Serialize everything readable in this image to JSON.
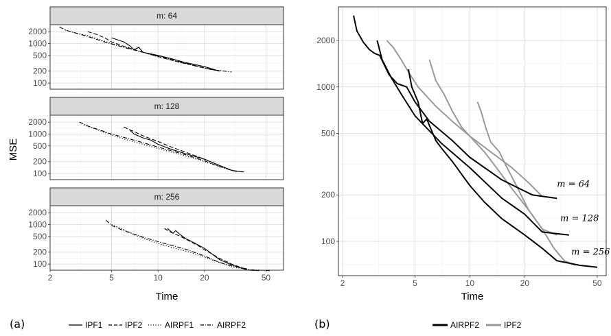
{
  "figure": {
    "panel_a_label": "(a)",
    "panel_b_label": "(b)",
    "legend_a": [
      "IPF1",
      "IPF2",
      "AIRPF1",
      "AIRPF2"
    ],
    "legend_b": [
      "AIRPF2",
      "IPF2"
    ]
  },
  "chart_data": [
    {
      "type": "line",
      "panel": "(a)",
      "facet_label_prefix": "m: ",
      "xlabel": "Time",
      "ylabel": "MSE",
      "x_scale": "log",
      "y_scale": "log",
      "xlim": [
        2,
        65
      ],
      "ylim": [
        70,
        3000
      ],
      "x_ticks": [
        2,
        5,
        10,
        20,
        50
      ],
      "y_ticks": [
        100,
        200,
        500,
        1000,
        2000
      ],
      "grid": true,
      "legend_position": "bottom",
      "line_styles": {
        "IPF1": "solid",
        "IPF2": "dashed",
        "AIRPF1": "dotted",
        "AIRPF2": "dotdash"
      },
      "facets": [
        {
          "m": 64,
          "series": [
            {
              "name": "IPF1",
              "points": [
                [
                  5.0,
                  1400
                ],
                [
                  6.0,
                  1100
                ],
                [
                  6.5,
                  900
                ],
                [
                  7.0,
                  700
                ],
                [
                  7.5,
                  800
                ],
                [
                  8.0,
                  600
                ],
                [
                  10,
                  500
                ],
                [
                  12,
                  420
                ],
                [
                  15,
                  330
                ],
                [
                  20,
                  260
                ],
                [
                  25,
                  200
                ]
              ]
            },
            {
              "name": "IPF2",
              "points": [
                [
                  3.5,
                  2000
                ],
                [
                  4.0,
                  1700
                ],
                [
                  4.5,
                  1400
                ],
                [
                  5.0,
                  1100
                ],
                [
                  6.0,
                  850
                ],
                [
                  8.0,
                  600
                ],
                [
                  10,
                  470
                ],
                [
                  14,
                  330
                ],
                [
                  20,
                  240
                ],
                [
                  25,
                  200
                ]
              ]
            },
            {
              "name": "AIRPF1",
              "points": [
                [
                  2.5,
                  2200
                ],
                [
                  3.0,
                  1800
                ],
                [
                  3.5,
                  1600
                ],
                [
                  4.0,
                  1350
                ],
                [
                  5.0,
                  1000
                ],
                [
                  7.0,
                  700
                ],
                [
                  10,
                  460
                ],
                [
                  15,
                  310
                ],
                [
                  20,
                  240
                ],
                [
                  26,
                  200
                ]
              ]
            },
            {
              "name": "AIRPF2",
              "points": [
                [
                  2.3,
                  2600
                ],
                [
                  2.6,
                  2100
                ],
                [
                  3.0,
                  1800
                ],
                [
                  3.5,
                  1500
                ],
                [
                  4.5,
                  1100
                ],
                [
                  6.0,
                  800
                ],
                [
                  8.0,
                  600
                ],
                [
                  10,
                  480
                ],
                [
                  15,
                  320
                ],
                [
                  22,
                  220
                ],
                [
                  30,
                  190
                ]
              ]
            }
          ]
        },
        {
          "m": 128,
          "series": [
            {
              "name": "IPF1",
              "points": [
                [
                  6.5,
                  1300
                ],
                [
                  7.0,
                  1000
                ],
                [
                  8.0,
                  800
                ],
                [
                  9.0,
                  700
                ],
                [
                  10,
                  550
                ],
                [
                  12,
                  420
                ],
                [
                  15,
                  320
                ],
                [
                  20,
                  230
                ],
                [
                  25,
                  160
                ],
                [
                  30,
                  120
                ],
                [
                  35,
                  110
                ]
              ]
            },
            {
              "name": "IPF2",
              "points": [
                [
                  6.0,
                  1500
                ],
                [
                  7.0,
                  1150
                ],
                [
                  8.0,
                  900
                ],
                [
                  10,
                  650
                ],
                [
                  12,
                  480
                ],
                [
                  15,
                  350
                ],
                [
                  20,
                  230
                ],
                [
                  25,
                  160
                ],
                [
                  30,
                  120
                ],
                [
                  33,
                  110
                ]
              ]
            },
            {
              "name": "AIRPF1",
              "points": [
                [
                  3.3,
                  1700
                ],
                [
                  4.0,
                  1300
                ],
                [
                  5.0,
                  950
                ],
                [
                  6.0,
                  750
                ],
                [
                  8.0,
                  550
                ],
                [
                  10,
                  430
                ],
                [
                  15,
                  280
                ],
                [
                  20,
                  200
                ],
                [
                  25,
                  150
                ],
                [
                  32,
                  115
                ]
              ]
            },
            {
              "name": "AIRPF2",
              "points": [
                [
                  3.1,
                  2000
                ],
                [
                  3.5,
                  1600
                ],
                [
                  4.0,
                  1350
                ],
                [
                  5.0,
                  1000
                ],
                [
                  7.0,
                  700
                ],
                [
                  10,
                  470
                ],
                [
                  15,
                  300
                ],
                [
                  20,
                  210
                ],
                [
                  25,
                  150
                ],
                [
                  30,
                  120
                ],
                [
                  36,
                  110
                ]
              ]
            }
          ]
        },
        {
          "m": 256,
          "series": [
            {
              "name": "IPF1",
              "points": [
                [
                  11.5,
                  800
                ],
                [
                  12.5,
                  600
                ],
                [
                  13,
                  700
                ],
                [
                  14,
                  550
                ],
                [
                  15,
                  450
                ],
                [
                  17,
                  350
                ],
                [
                  20,
                  250
                ],
                [
                  25,
                  130
                ],
                [
                  30,
                  95
                ],
                [
                  38,
                  70
                ],
                [
                  45,
                  68
                ]
              ]
            },
            {
              "name": "IPF2",
              "points": [
                [
                  11,
                  800
                ],
                [
                  12,
                  650
                ],
                [
                  14,
                  500
                ],
                [
                  16,
                  380
                ],
                [
                  18,
                  300
                ],
                [
                  20,
                  230
                ],
                [
                  25,
                  140
                ],
                [
                  30,
                  100
                ],
                [
                  35,
                  80
                ],
                [
                  38,
                  70
                ]
              ]
            },
            {
              "name": "AIRPF1",
              "points": [
                [
                  5.0,
                  1000
                ],
                [
                  6.0,
                  750
                ],
                [
                  7.0,
                  550
                ],
                [
                  9.0,
                  380
                ],
                [
                  12,
                  270
                ],
                [
                  16,
                  200
                ],
                [
                  20,
                  150
                ],
                [
                  25,
                  110
                ],
                [
                  30,
                  85
                ],
                [
                  40,
                  70
                ],
                [
                  50,
                  68
                ]
              ]
            },
            {
              "name": "AIRPF2",
              "points": [
                [
                  4.6,
                  1300
                ],
                [
                  5.0,
                  950
                ],
                [
                  6.0,
                  700
                ],
                [
                  8.0,
                  480
                ],
                [
                  10,
                  370
                ],
                [
                  15,
                  240
                ],
                [
                  20,
                  160
                ],
                [
                  25,
                  110
                ],
                [
                  30,
                  90
                ],
                [
                  40,
                  72
                ],
                [
                  53,
                  68
                ]
              ]
            }
          ]
        }
      ]
    },
    {
      "type": "line",
      "panel": "(b)",
      "xlabel": "Time",
      "ylabel": "",
      "x_scale": "log",
      "y_scale": "log",
      "xlim": [
        1.9,
        56
      ],
      "ylim": [
        60,
        3300
      ],
      "x_ticks": [
        2,
        5,
        10,
        20,
        50
      ],
      "y_ticks": [
        100,
        200,
        500,
        1000,
        2000
      ],
      "grid": true,
      "legend_position": "bottom",
      "colors": {
        "AIRPF2": "#000000",
        "IPF2": "#999999"
      },
      "annotations": [
        {
          "text": "m = 64",
          "x": 37,
          "y": 225
        },
        {
          "text": "m = 128",
          "x": 40,
          "y": 135
        },
        {
          "text": "m = 256",
          "x": 46,
          "y": 82
        }
      ],
      "series": [
        {
          "name": "AIRPF2",
          "m": 64,
          "points": [
            [
              2.3,
              2900
            ],
            [
              2.4,
              2300
            ],
            [
              2.6,
              1950
            ],
            [
              2.8,
              1750
            ],
            [
              3.0,
              1650
            ],
            [
              3.2,
              1600
            ],
            [
              3.6,
              1200
            ],
            [
              4.0,
              1050
            ],
            [
              4.5,
              1000
            ],
            [
              5.0,
              800
            ],
            [
              6.0,
              600
            ],
            [
              8.0,
              450
            ],
            [
              10,
              350
            ],
            [
              15,
              250
            ],
            [
              22,
              200
            ],
            [
              30,
              190
            ]
          ]
        },
        {
          "name": "AIRPF2",
          "m": 128,
          "points": [
            [
              3.1,
              2000
            ],
            [
              3.3,
              1500
            ],
            [
              3.7,
              1150
            ],
            [
              4.2,
              900
            ],
            [
              5.0,
              650
            ],
            [
              6.0,
              520
            ],
            [
              7.0,
              430
            ],
            [
              10,
              300
            ],
            [
              15,
              190
            ],
            [
              20,
              150
            ],
            [
              25,
              115
            ],
            [
              35,
              110
            ]
          ]
        },
        {
          "name": "AIRPF2",
          "m": 256,
          "points": [
            [
              4.6,
              1300
            ],
            [
              4.8,
              1000
            ],
            [
              5.2,
              800
            ],
            [
              5.5,
              580
            ],
            [
              5.8,
              620
            ],
            [
              6.5,
              450
            ],
            [
              7.0,
              400
            ],
            [
              8.0,
              330
            ],
            [
              10,
              230
            ],
            [
              12,
              180
            ],
            [
              15,
              140
            ],
            [
              20,
              110
            ],
            [
              25,
              90
            ],
            [
              30,
              75
            ],
            [
              40,
              70
            ],
            [
              50,
              68
            ]
          ]
        },
        {
          "name": "IPF2",
          "m": 64,
          "points": [
            [
              3.5,
              2000
            ],
            [
              3.8,
              1800
            ],
            [
              4.2,
              1500
            ],
            [
              4.6,
              1250
            ],
            [
              5.2,
              1000
            ],
            [
              6.5,
              750
            ],
            [
              8.0,
              600
            ],
            [
              10,
              480
            ],
            [
              13,
              380
            ],
            [
              17,
              300
            ],
            [
              21,
              240
            ],
            [
              25,
              195
            ]
          ]
        },
        {
          "name": "IPF2",
          "m": 128,
          "points": [
            [
              6.0,
              1500
            ],
            [
              6.5,
              1100
            ],
            [
              7.2,
              900
            ],
            [
              8.0,
              700
            ],
            [
              9.0,
              550
            ],
            [
              10,
              480
            ],
            [
              12,
              380
            ],
            [
              14,
              300
            ],
            [
              17,
              220
            ],
            [
              21,
              160
            ],
            [
              25,
              120
            ],
            [
              30,
              110
            ]
          ]
        },
        {
          "name": "IPF2",
          "m": 256,
          "points": [
            [
              11,
              800
            ],
            [
              11.5,
              700
            ],
            [
              12.2,
              550
            ],
            [
              13,
              440
            ],
            [
              14.5,
              380
            ],
            [
              16,
              300
            ],
            [
              18,
              230
            ],
            [
              21,
              160
            ],
            [
              25,
              120
            ],
            [
              29,
              90
            ],
            [
              33,
              75
            ],
            [
              38,
              70
            ]
          ]
        }
      ]
    }
  ]
}
